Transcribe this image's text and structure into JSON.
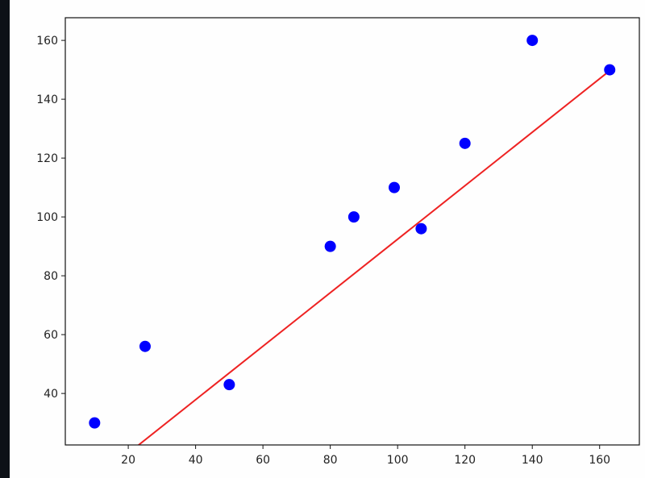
{
  "chart_data": {
    "type": "scatter",
    "title": "",
    "xlabel": "",
    "ylabel": "",
    "xlim": [
      1.3,
      171.8
    ],
    "ylim": [
      22.5,
      167.7
    ],
    "xticks": [
      20,
      40,
      60,
      80,
      100,
      120,
      140,
      160
    ],
    "yticks": [
      40,
      60,
      80,
      100,
      120,
      140,
      160
    ],
    "grid": false,
    "series": [
      {
        "type": "scatter",
        "color": "#0000ff",
        "x": [
          10,
          25,
          50,
          80,
          87,
          99,
          107,
          120,
          140,
          163
        ],
        "y": [
          30,
          56,
          43,
          90,
          100,
          110,
          96,
          125,
          160,
          150
        ]
      },
      {
        "type": "line",
        "color": "#ee2222",
        "x": [
          10,
          163
        ],
        "y": [
          10.6,
          149.7
        ]
      }
    ]
  }
}
